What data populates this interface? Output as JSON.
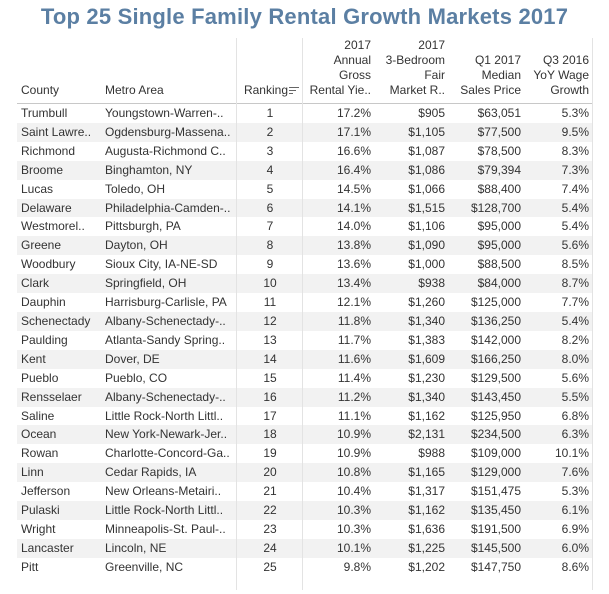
{
  "title": "Top 25 Single Family Rental Growth Markets 2017",
  "columns": {
    "county": "County",
    "metro": "Metro Area",
    "ranking": "Ranking",
    "gross_yield": [
      "2017",
      "Annual",
      "Gross",
      "Rental Yie.."
    ],
    "fair_rent": [
      "2017",
      "3-Bedroom",
      "Fair",
      "Market R.."
    ],
    "sales_price": [
      "Q1 2017",
      "Median",
      "Sales Price"
    ],
    "wage_growth": [
      "Q3 2016",
      "YoY Wage",
      "Growth"
    ]
  },
  "icons": {
    "sort": "sort-descending-icon"
  },
  "chart_data": {
    "type": "table",
    "title": "Top 25 Single Family Rental Growth Markets 2017",
    "headers": [
      "County",
      "Metro Area",
      "Ranking",
      "2017 Annual Gross Rental Yie..",
      "2017 3-Bedroom Fair Market R..",
      "Q1 2017 Median Sales Price",
      "Q3 2016 YoY Wage Growth"
    ],
    "rows": [
      [
        "Trumbull",
        "Youngstown-Warren-..",
        "1",
        "17.2%",
        "$905",
        "$63,051",
        "5.3%"
      ],
      [
        "Saint Lawre..",
        "Ogdensburg-Massena..",
        "2",
        "17.1%",
        "$1,105",
        "$77,500",
        "9.5%"
      ],
      [
        "Richmond",
        "Augusta-Richmond C..",
        "3",
        "16.6%",
        "$1,087",
        "$78,500",
        "8.3%"
      ],
      [
        "Broome",
        "Binghamton, NY",
        "4",
        "16.4%",
        "$1,086",
        "$79,394",
        "7.3%"
      ],
      [
        "Lucas",
        "Toledo, OH",
        "5",
        "14.5%",
        "$1,066",
        "$88,400",
        "7.4%"
      ],
      [
        "Delaware",
        "Philadelphia-Camden-..",
        "6",
        "14.1%",
        "$1,515",
        "$128,700",
        "5.4%"
      ],
      [
        "Westmorel..",
        "Pittsburgh, PA",
        "7",
        "14.0%",
        "$1,106",
        "$95,000",
        "5.4%"
      ],
      [
        "Greene",
        "Dayton, OH",
        "8",
        "13.8%",
        "$1,090",
        "$95,000",
        "5.6%"
      ],
      [
        "Woodbury",
        "Sioux City, IA-NE-SD",
        "9",
        "13.6%",
        "$1,000",
        "$88,500",
        "8.5%"
      ],
      [
        "Clark",
        "Springfield, OH",
        "10",
        "13.4%",
        "$938",
        "$84,000",
        "8.7%"
      ],
      [
        "Dauphin",
        "Harrisburg-Carlisle, PA",
        "11",
        "12.1%",
        "$1,260",
        "$125,000",
        "7.7%"
      ],
      [
        "Schenectady",
        "Albany-Schenectady-..",
        "12",
        "11.8%",
        "$1,340",
        "$136,250",
        "5.4%"
      ],
      [
        "Paulding",
        "Atlanta-Sandy Spring..",
        "13",
        "11.7%",
        "$1,383",
        "$142,000",
        "8.2%"
      ],
      [
        "Kent",
        "Dover, DE",
        "14",
        "11.6%",
        "$1,609",
        "$166,250",
        "8.0%"
      ],
      [
        "Pueblo",
        "Pueblo, CO",
        "15",
        "11.4%",
        "$1,230",
        "$129,500",
        "5.6%"
      ],
      [
        "Rensselaer",
        "Albany-Schenectady-..",
        "16",
        "11.2%",
        "$1,340",
        "$143,450",
        "5.5%"
      ],
      [
        "Saline",
        "Little Rock-North Littl..",
        "17",
        "11.1%",
        "$1,162",
        "$125,950",
        "6.8%"
      ],
      [
        "Ocean",
        "New York-Newark-Jer..",
        "18",
        "10.9%",
        "$2,131",
        "$234,500",
        "6.3%"
      ],
      [
        "Rowan",
        "Charlotte-Concord-Ga..",
        "19",
        "10.9%",
        "$988",
        "$109,000",
        "10.1%"
      ],
      [
        "Linn",
        "Cedar Rapids, IA",
        "20",
        "10.8%",
        "$1,165",
        "$129,000",
        "7.6%"
      ],
      [
        "Jefferson",
        "New Orleans-Metairi..",
        "21",
        "10.4%",
        "$1,317",
        "$151,475",
        "5.3%"
      ],
      [
        "Pulaski",
        "Little Rock-North Littl..",
        "22",
        "10.3%",
        "$1,162",
        "$135,450",
        "6.1%"
      ],
      [
        "Wright",
        "Minneapolis-St. Paul-..",
        "23",
        "10.3%",
        "$1,636",
        "$191,500",
        "6.9%"
      ],
      [
        "Lancaster",
        "Lincoln, NE",
        "24",
        "10.1%",
        "$1,225",
        "$145,500",
        "6.0%"
      ],
      [
        "Pitt",
        "Greenville, NC",
        "25",
        "9.8%",
        "$1,202",
        "$147,750",
        "8.6%"
      ]
    ]
  }
}
